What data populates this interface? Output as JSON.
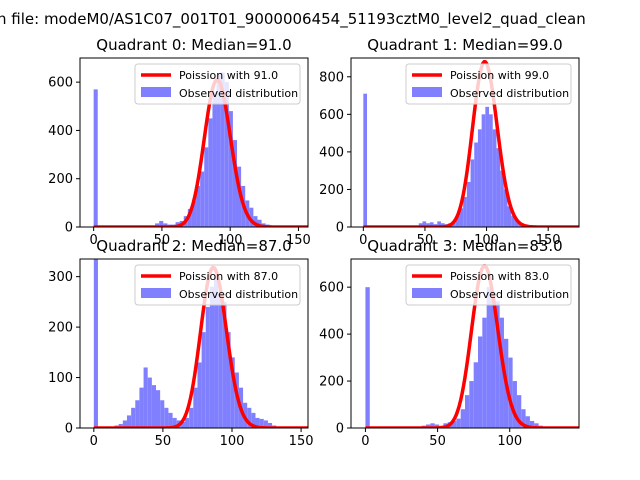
{
  "figure": {
    "suptitle": "n file: modeM0/AS1C07_001T01_9000006454_51193cztM0_level2_quad_clean"
  },
  "colors": {
    "observed": "#8080ff",
    "poisson": "#ff0000"
  },
  "chart_data": [
    {
      "type": "histogram",
      "title": "Quadrant 0: Median=91.0",
      "xlim": [
        -10,
        157
      ],
      "ylim": [
        0,
        700
      ],
      "xticks": [
        0,
        50,
        100,
        150
      ],
      "yticks": [
        0,
        200,
        400,
        600
      ],
      "legend_position": "top-right",
      "legend": [
        "Poission with 91.0",
        "Observed distribution"
      ],
      "bin_width": 3,
      "observed": {
        "x": [
          0,
          3,
          6,
          9,
          12,
          15,
          18,
          21,
          24,
          27,
          30,
          33,
          36,
          39,
          42,
          45,
          48,
          51,
          54,
          57,
          60,
          63,
          66,
          69,
          72,
          75,
          78,
          81,
          84,
          87,
          90,
          93,
          96,
          99,
          102,
          105,
          108,
          111,
          114,
          117,
          120,
          123,
          126,
          129,
          132,
          135,
          138,
          141,
          144
        ],
        "y": [
          570,
          0,
          0,
          0,
          0,
          0,
          0,
          0,
          0,
          0,
          0,
          0,
          0,
          5,
          5,
          15,
          25,
          15,
          10,
          10,
          20,
          25,
          45,
          75,
          110,
          170,
          230,
          330,
          450,
          560,
          630,
          640,
          600,
          480,
          360,
          250,
          170,
          110,
          80,
          45,
          30,
          15,
          10,
          5,
          0,
          0,
          0,
          0,
          0
        ]
      },
      "poisson": {
        "mean": 91.0,
        "scale": 610
      }
    },
    {
      "type": "histogram",
      "title": "Quadrant 1: Median=99.0",
      "xlim": [
        -10,
        175
      ],
      "ylim": [
        0,
        900
      ],
      "xticks": [
        0,
        50,
        100,
        150
      ],
      "yticks": [
        0,
        200,
        400,
        600,
        800
      ],
      "legend_position": "top-right",
      "legend": [
        "Poission with 99.0",
        "Observed distribution"
      ],
      "bin_width": 3,
      "observed": {
        "x": [
          0,
          3,
          6,
          9,
          12,
          15,
          18,
          21,
          24,
          27,
          30,
          33,
          36,
          39,
          42,
          45,
          48,
          51,
          54,
          57,
          60,
          63,
          66,
          69,
          72,
          75,
          78,
          81,
          84,
          87,
          90,
          93,
          96,
          99,
          102,
          105,
          108,
          111,
          114,
          117,
          120,
          123,
          126,
          129,
          132,
          135,
          138,
          141,
          144,
          147,
          150,
          153,
          156,
          159,
          162,
          165
        ],
        "y": [
          710,
          0,
          0,
          0,
          0,
          0,
          0,
          0,
          0,
          0,
          0,
          0,
          0,
          0,
          0,
          20,
          30,
          20,
          25,
          15,
          30,
          20,
          15,
          20,
          30,
          60,
          100,
          160,
          240,
          360,
          450,
          520,
          600,
          640,
          600,
          520,
          420,
          300,
          200,
          110,
          60,
          40,
          20,
          10,
          5,
          0,
          0,
          0,
          0,
          0,
          0,
          0,
          0,
          0,
          0,
          0
        ]
      },
      "poisson": {
        "mean": 99.0,
        "scale": 880
      }
    },
    {
      "type": "histogram",
      "title": "Quadrant 2: Median=87.0",
      "xlim": [
        -10,
        155
      ],
      "ylim": [
        0,
        335
      ],
      "xticks": [
        0,
        50,
        100,
        150
      ],
      "yticks": [
        0,
        100,
        200,
        300
      ],
      "legend_position": "top-right",
      "legend": [
        "Poission with 87.0",
        "Observed distribution"
      ],
      "bin_width": 3,
      "observed": {
        "x": [
          0,
          3,
          6,
          9,
          12,
          15,
          18,
          21,
          24,
          27,
          30,
          33,
          36,
          39,
          42,
          45,
          48,
          51,
          54,
          57,
          60,
          63,
          66,
          69,
          72,
          75,
          78,
          81,
          84,
          87,
          90,
          93,
          96,
          99,
          102,
          105,
          108,
          111,
          114,
          117,
          120,
          123,
          126,
          129,
          132,
          135,
          138,
          141,
          144
        ],
        "y": [
          335,
          0,
          0,
          0,
          0,
          5,
          8,
          15,
          25,
          40,
          55,
          80,
          120,
          100,
          85,
          75,
          55,
          40,
          30,
          20,
          15,
          12,
          20,
          40,
          80,
          130,
          190,
          240,
          280,
          300,
          270,
          250,
          190,
          140,
          110,
          80,
          50,
          40,
          30,
          20,
          18,
          15,
          10,
          5,
          3,
          2,
          0,
          0,
          0
        ]
      },
      "poisson": {
        "mean": 87.0,
        "scale": 318
      }
    },
    {
      "type": "histogram",
      "title": "Quadrant 3: Median=83.0",
      "xlim": [
        -10,
        148
      ],
      "ylim": [
        0,
        720
      ],
      "xticks": [
        0,
        50,
        100
      ],
      "yticks": [
        0,
        200,
        400,
        600
      ],
      "legend_position": "top-right",
      "legend": [
        "Poission with 83.0",
        "Observed distribution"
      ],
      "bin_width": 3,
      "observed": {
        "x": [
          0,
          3,
          6,
          9,
          12,
          15,
          18,
          21,
          24,
          27,
          30,
          33,
          36,
          39,
          42,
          45,
          48,
          51,
          54,
          57,
          60,
          63,
          66,
          69,
          72,
          75,
          78,
          81,
          84,
          87,
          90,
          93,
          96,
          99,
          102,
          105,
          108,
          111,
          114,
          117,
          120,
          123,
          126,
          129,
          132,
          135,
          138
        ],
        "y": [
          600,
          0,
          0,
          0,
          0,
          0,
          0,
          0,
          0,
          0,
          0,
          0,
          0,
          10,
          15,
          20,
          15,
          10,
          20,
          25,
          30,
          40,
          80,
          140,
          200,
          280,
          390,
          470,
          600,
          580,
          540,
          470,
          380,
          300,
          200,
          140,
          80,
          50,
          30,
          20,
          10,
          5,
          0,
          0,
          0,
          0,
          0
        ]
      },
      "poisson": {
        "mean": 83.0,
        "scale": 690
      }
    }
  ]
}
